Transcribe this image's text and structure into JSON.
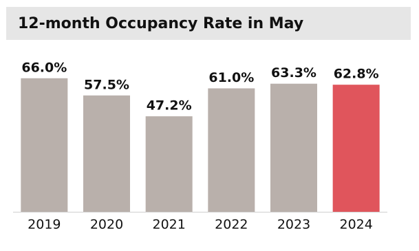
{
  "chart_data": {
    "type": "bar",
    "title": "12-month Occupancy Rate in May",
    "categories": [
      "2019",
      "2020",
      "2021",
      "2022",
      "2023",
      "2024"
    ],
    "values": [
      66.0,
      57.5,
      47.2,
      61.0,
      63.3,
      62.8
    ],
    "value_labels": [
      "66.0%",
      "57.5%",
      "47.2%",
      "61.0%",
      "63.3%",
      "62.8%"
    ],
    "colors": [
      "#b9b0ab",
      "#b9b0ab",
      "#b9b0ab",
      "#b9b0ab",
      "#b9b0ab",
      "#e0555c"
    ],
    "ylim": [
      0,
      70
    ]
  }
}
